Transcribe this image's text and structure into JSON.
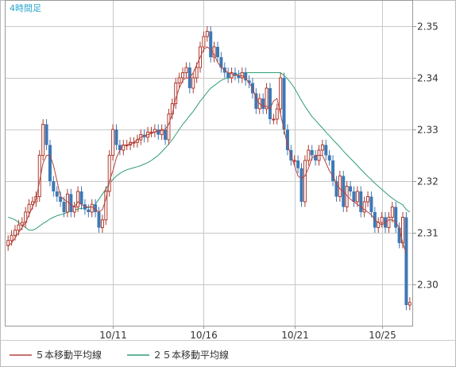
{
  "chart_data": {
    "type": "candlestick",
    "title": "4時間足",
    "xlabel": "",
    "ylabel": "",
    "ylim": [
      2.291,
      2.355
    ],
    "yticks": [
      "2.35",
      "2.34",
      "2.33",
      "2.32",
      "2.31",
      "2.30"
    ],
    "ytick_values": [
      2.35,
      2.34,
      2.33,
      2.32,
      2.31,
      2.3
    ],
    "xticks": [
      "10/11",
      "10/16",
      "10/21",
      "10/25"
    ],
    "xtick_index": [
      30,
      56,
      82,
      107
    ],
    "grid": true,
    "colors": {
      "up": "#b03a2e",
      "down": "#3d78b5",
      "ma5": "#b5423d",
      "ma25": "#2e9e73",
      "grid": "#c8c8c8",
      "frame": "#999999"
    },
    "legend": [
      {
        "name": "５本移動平均線",
        "color": "#b5423d"
      },
      {
        "name": "２５本移動平均線",
        "color": "#2e9e73"
      }
    ],
    "series": [
      {
        "name": "close",
        "values": [
          2.3085,
          2.3095,
          2.3105,
          2.3115,
          2.312,
          2.314,
          2.3155,
          2.316,
          2.317,
          2.325,
          2.331,
          2.327,
          2.32,
          2.318,
          2.317,
          2.316,
          2.314,
          2.3175,
          2.314,
          2.315,
          2.318,
          2.3155,
          2.3145,
          2.314,
          2.3155,
          2.314,
          2.311,
          2.3125,
          2.318,
          2.325,
          2.33,
          2.327,
          2.326,
          2.327,
          2.327,
          2.3275,
          2.3275,
          2.328,
          2.329,
          2.3285,
          2.3295,
          2.3295,
          2.33,
          2.329,
          2.33,
          2.328,
          2.333,
          2.335,
          2.339,
          2.34,
          2.341,
          2.342,
          2.338,
          2.34,
          2.342,
          2.346,
          2.348,
          2.349,
          2.344,
          2.346,
          2.344,
          2.342,
          2.341,
          2.34,
          2.341,
          2.3405,
          2.34,
          2.341,
          2.3395,
          2.339,
          2.337,
          2.334,
          2.336,
          2.334,
          2.338,
          2.332,
          2.332,
          2.334,
          2.34,
          2.33,
          2.326,
          2.324,
          2.324,
          2.3225,
          2.316,
          2.324,
          2.326,
          2.325,
          2.324,
          2.326,
          2.327,
          2.325,
          2.324,
          2.32,
          2.317,
          2.321,
          2.315,
          2.319,
          2.318,
          2.316,
          2.318,
          2.314,
          2.316,
          2.317,
          2.314,
          2.311,
          2.312,
          2.313,
          2.311,
          2.313,
          2.315,
          2.311,
          2.308,
          2.313,
          2.296,
          2.2965
        ]
      },
      {
        "name": "ma5",
        "values": [
          2.3075,
          2.308,
          2.309,
          2.31,
          2.311,
          2.312,
          2.3135,
          2.315,
          2.3165,
          2.32,
          2.3235,
          2.325,
          2.325,
          2.323,
          2.32,
          2.317,
          2.3165,
          2.316,
          2.3155,
          2.315,
          2.316,
          2.3155,
          2.315,
          2.315,
          2.315,
          2.3145,
          2.314,
          2.3145,
          2.3165,
          2.32,
          2.322,
          2.3245,
          2.326,
          2.327,
          2.327,
          2.3272,
          2.3275,
          2.328,
          2.3285,
          2.3288,
          2.329,
          2.3292,
          2.3295,
          2.3297,
          2.3298,
          2.33,
          2.331,
          2.333,
          2.336,
          2.338,
          2.3395,
          2.34,
          2.34,
          2.341,
          2.3425,
          2.344,
          2.3455,
          2.346,
          2.3455,
          2.3445,
          2.343,
          2.342,
          2.3415,
          2.341,
          2.3408,
          2.3405,
          2.3405,
          2.3404,
          2.34,
          2.339,
          2.338,
          2.336,
          2.335,
          2.3345,
          2.3345,
          2.334,
          2.3355,
          2.336,
          2.333,
          2.33,
          2.327,
          2.325,
          2.323,
          2.321,
          2.3205,
          2.321,
          2.3225,
          2.3245,
          2.325,
          2.325,
          2.325,
          2.3235,
          2.322,
          2.321,
          2.3195,
          2.3185,
          2.318,
          2.3172,
          2.3165,
          2.316,
          2.3155,
          2.315,
          2.3145,
          2.314,
          2.3135,
          2.3125,
          2.312,
          2.3115,
          2.312,
          2.3125,
          2.3125,
          2.312,
          2.311,
          2.308,
          2.306
        ]
      },
      {
        "name": "ma25",
        "values": [
          2.313,
          2.3128,
          2.3125,
          2.312,
          2.3115,
          2.311,
          2.3105,
          2.3105,
          2.3108,
          2.3113,
          2.3118,
          2.3122,
          2.3127,
          2.313,
          2.3133,
          2.3135,
          2.3137,
          2.314,
          2.3142,
          2.3144,
          2.3146,
          2.3147,
          2.3148,
          2.3149,
          2.315,
          2.3155,
          2.3165,
          2.3175,
          2.3185,
          2.3195,
          2.3203,
          2.321,
          2.3215,
          2.3219,
          2.3222,
          2.3224,
          2.3226,
          2.3228,
          2.323,
          2.3233,
          2.3236,
          2.324,
          2.3245,
          2.325,
          2.3257,
          2.3264,
          2.3272,
          2.328,
          2.329,
          2.33,
          2.331,
          2.3318,
          2.3327,
          2.3335,
          2.3345,
          2.3355,
          2.3363,
          2.3372,
          2.338,
          2.3385,
          2.339,
          2.3395,
          2.3398,
          2.34,
          2.3402,
          2.3405,
          2.3408,
          2.341,
          2.341,
          2.341,
          2.341,
          2.341,
          2.341,
          2.341,
          2.341,
          2.341,
          2.341,
          2.341,
          2.341,
          2.3405,
          2.3398,
          2.339,
          2.338,
          2.3368,
          2.3356,
          2.3345,
          2.3335,
          2.3325,
          2.3318,
          2.331,
          2.3303,
          2.3295,
          2.3288,
          2.328,
          2.3273,
          2.3266,
          2.3258,
          2.3251,
          2.3244,
          2.3237,
          2.323,
          2.3223,
          2.3216,
          2.3209,
          2.3203,
          2.3196,
          2.319,
          2.3184,
          2.3178,
          2.3172,
          2.3167,
          2.3162,
          2.3158,
          2.3154,
          2.3145,
          2.314
        ]
      }
    ]
  }
}
